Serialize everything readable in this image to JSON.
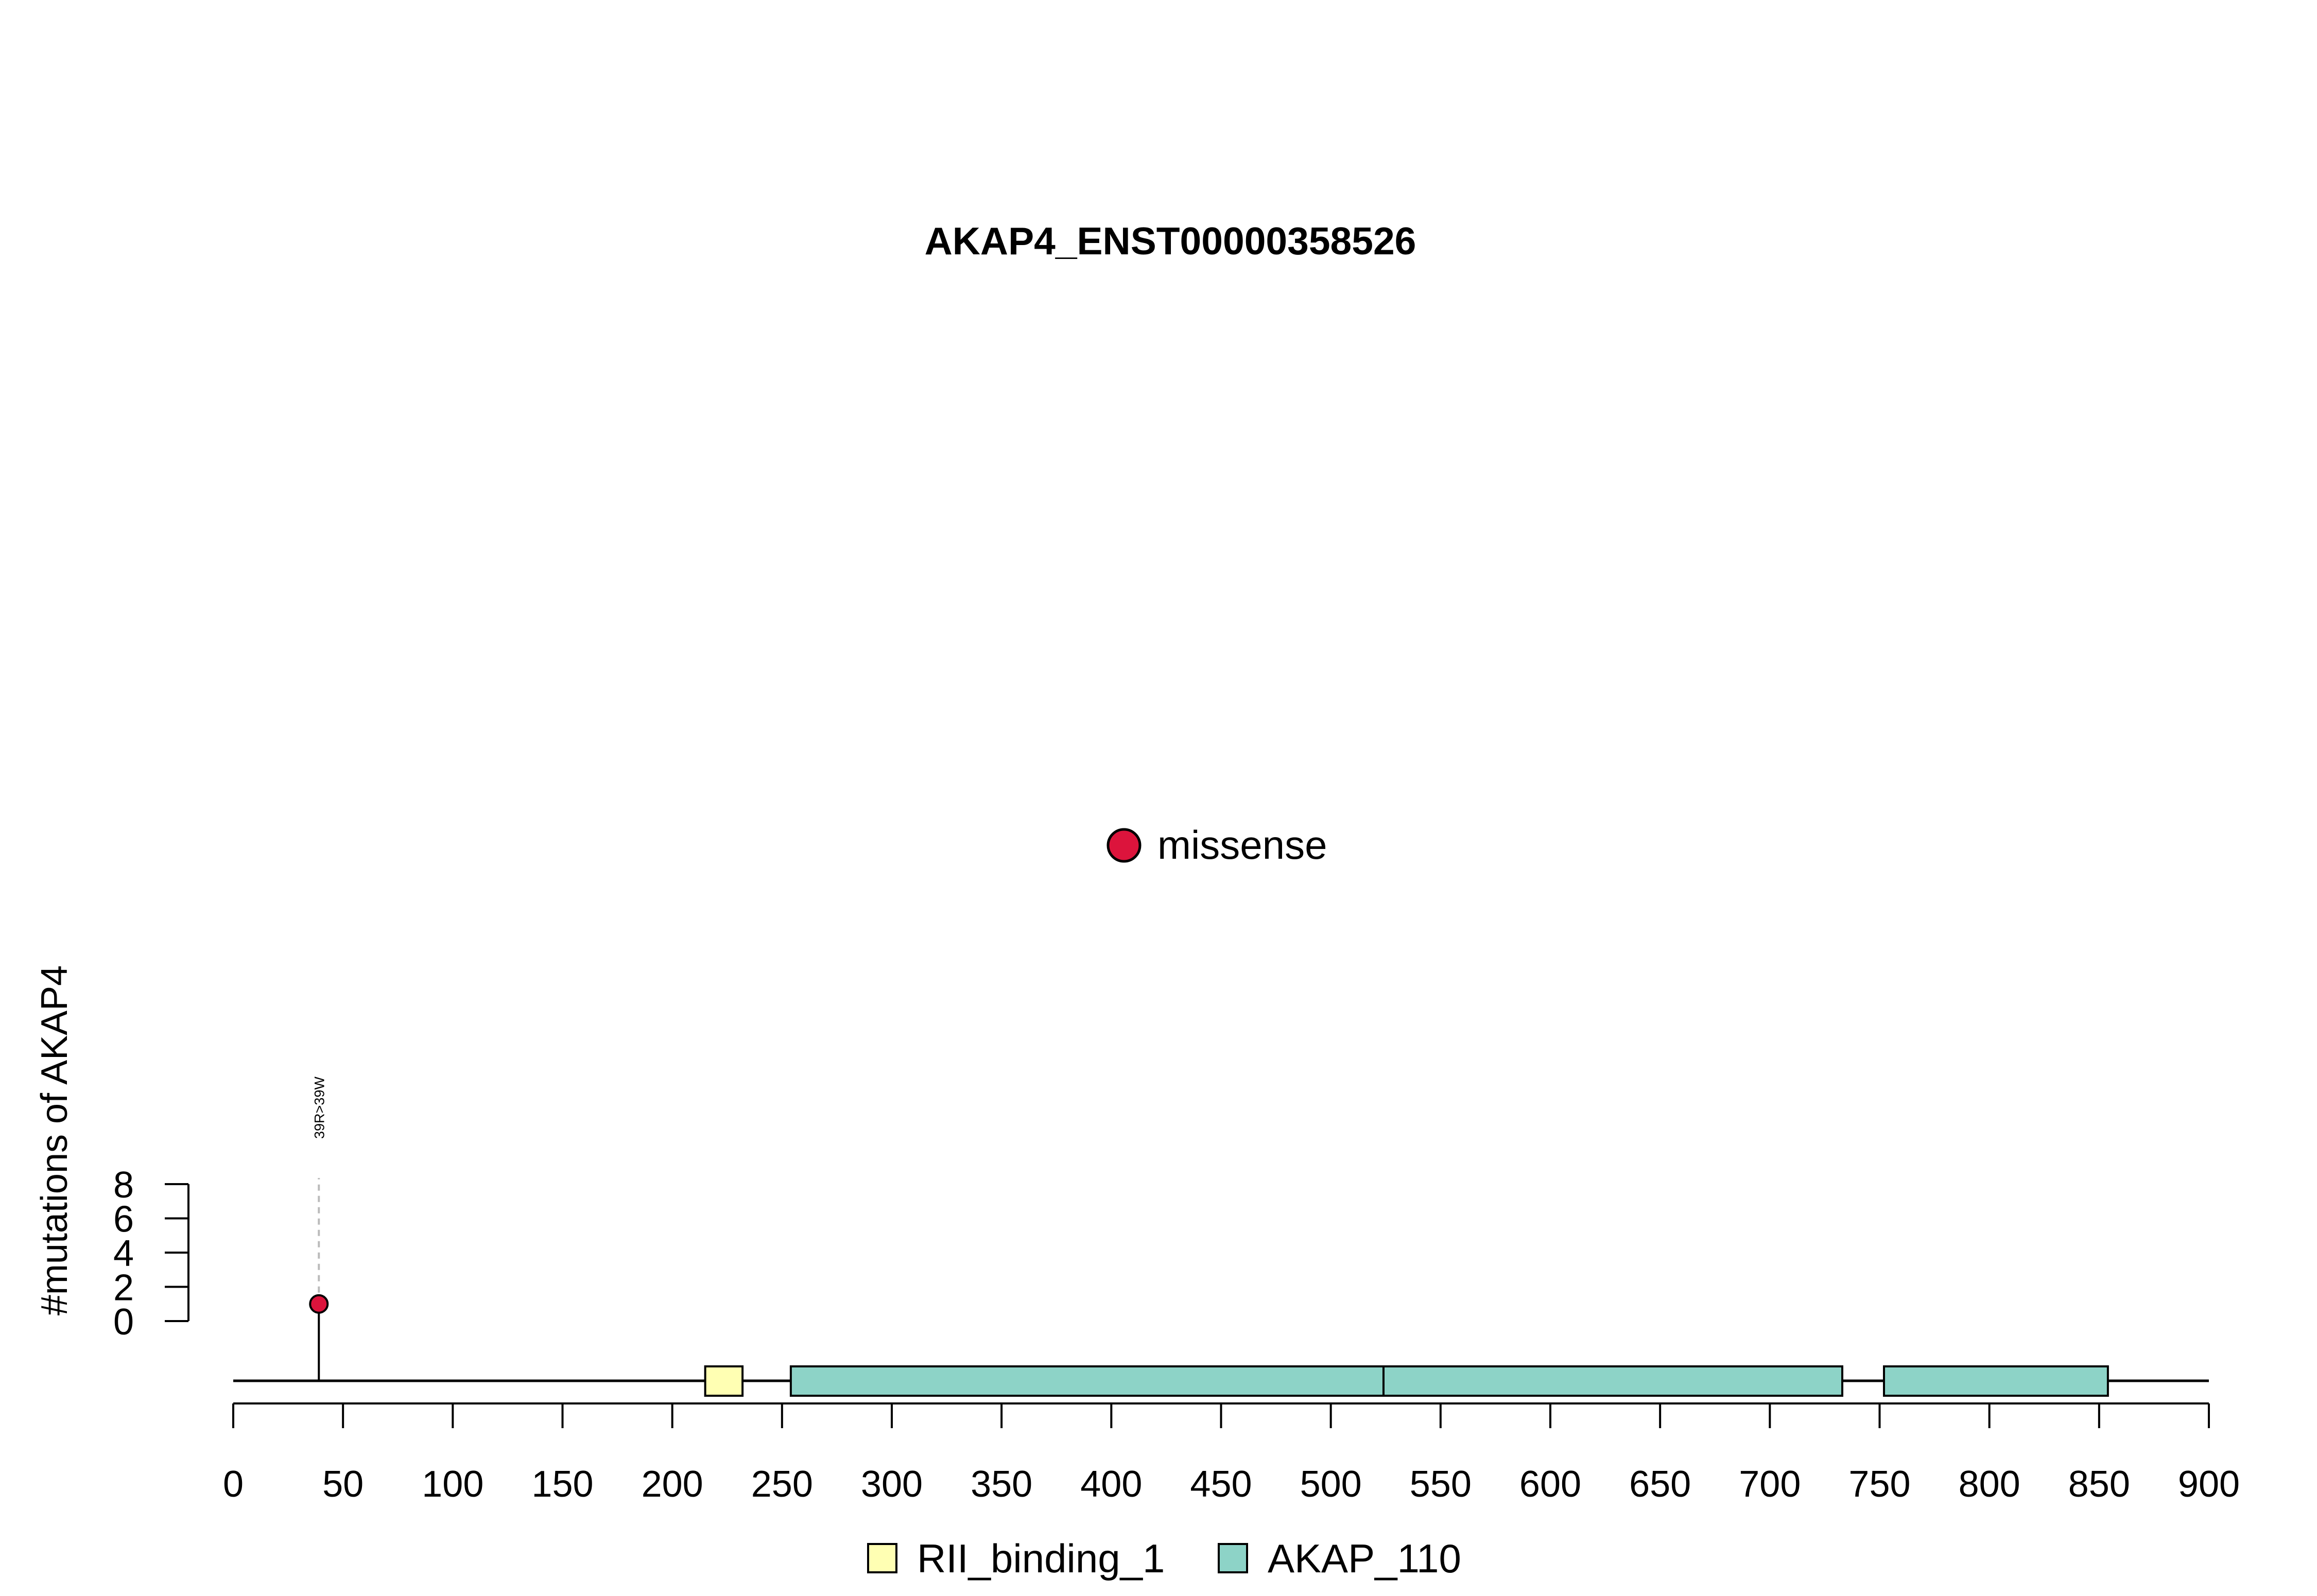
{
  "chart_data": {
    "type": "lollipop",
    "title": "AKAP4_ENST00000358526",
    "ylabel": "#mutations of AKAP4",
    "xlim": [
      0,
      900
    ],
    "xticks": [
      0,
      50,
      100,
      150,
      200,
      250,
      300,
      350,
      400,
      450,
      500,
      550,
      600,
      650,
      700,
      750,
      800,
      850,
      900
    ],
    "yticks": [
      0,
      2,
      4,
      6,
      8
    ],
    "protein_length": 900,
    "colors": {
      "missense": "#DC143C",
      "RII_binding_1": "#FFFFB3",
      "AKAP_110": "#8DD3C7"
    },
    "mutation_legend": [
      {
        "label": "missense",
        "color": "#DC143C"
      }
    ],
    "domain_legend": [
      {
        "label": "RII_binding_1",
        "color": "#FFFFB3"
      },
      {
        "label": "AKAP_110",
        "color": "#8DD3C7"
      }
    ],
    "mutations": [
      {
        "position": 39,
        "count": 1,
        "label": "39R>39W",
        "type": "missense"
      }
    ],
    "domains": [
      {
        "name": "RII_binding_1",
        "start": 215,
        "end": 232
      },
      {
        "name": "AKAP_110",
        "start": 254,
        "end": 524
      },
      {
        "name": "AKAP_110",
        "start": 524,
        "end": 733
      },
      {
        "name": "AKAP_110",
        "start": 752,
        "end": 854
      }
    ]
  }
}
